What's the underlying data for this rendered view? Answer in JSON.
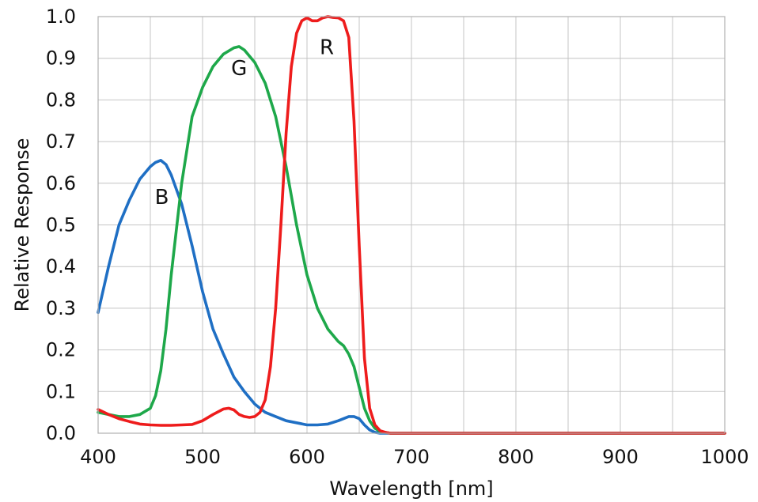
{
  "chart_data": {
    "type": "line",
    "xlabel": "Wavelength [nm]",
    "ylabel": "Relative Response",
    "xlim": [
      400,
      1000
    ],
    "ylim": [
      0,
      1.0
    ],
    "x_ticks": [
      "400",
      "500",
      "600",
      "700",
      "800",
      "900",
      "1000"
    ],
    "y_ticks": [
      "0.0",
      "0.1",
      "0.2",
      "0.3",
      "0.4",
      "0.5",
      "0.6",
      "0.7",
      "0.8",
      "0.9",
      "1.0"
    ],
    "x_grid_step": 50,
    "y_grid_step": 0.1,
    "grid": true,
    "series": [
      {
        "name": "B",
        "color": "#1f6fc4",
        "label_at": [
          461,
          0.55
        ],
        "x": [
          400,
          410,
          420,
          430,
          440,
          450,
          455,
          460,
          465,
          470,
          480,
          490,
          500,
          510,
          520,
          530,
          540,
          550,
          560,
          570,
          580,
          590,
          600,
          610,
          620,
          630,
          640,
          645,
          650,
          655,
          660,
          665,
          670,
          680,
          700,
          1000
        ],
        "y": [
          0.29,
          0.4,
          0.5,
          0.56,
          0.61,
          0.64,
          0.65,
          0.655,
          0.645,
          0.62,
          0.55,
          0.45,
          0.34,
          0.25,
          0.19,
          0.135,
          0.1,
          0.07,
          0.05,
          0.04,
          0.03,
          0.025,
          0.02,
          0.02,
          0.022,
          0.03,
          0.04,
          0.04,
          0.035,
          0.02,
          0.008,
          0.002,
          0.0,
          0.0,
          0.0,
          0.0
        ]
      },
      {
        "name": "G",
        "color": "#1ea84a",
        "label_at": [
          535,
          0.86
        ],
        "x": [
          400,
          410,
          420,
          430,
          440,
          450,
          455,
          460,
          465,
          470,
          480,
          490,
          500,
          510,
          520,
          530,
          535,
          540,
          550,
          560,
          570,
          580,
          590,
          600,
          610,
          620,
          630,
          635,
          640,
          645,
          650,
          655,
          660,
          665,
          670,
          680,
          700,
          1000
        ],
        "y": [
          0.05,
          0.045,
          0.04,
          0.04,
          0.045,
          0.06,
          0.09,
          0.15,
          0.25,
          0.38,
          0.6,
          0.76,
          0.83,
          0.88,
          0.91,
          0.925,
          0.928,
          0.92,
          0.89,
          0.84,
          0.76,
          0.64,
          0.5,
          0.38,
          0.3,
          0.25,
          0.22,
          0.21,
          0.19,
          0.16,
          0.11,
          0.06,
          0.03,
          0.012,
          0.004,
          0.0,
          0.0,
          0.0
        ]
      },
      {
        "name": "R",
        "color": "#ee1c1c",
        "label_at": [
          619,
          0.91
        ],
        "x": [
          400,
          410,
          420,
          430,
          440,
          450,
          460,
          470,
          480,
          490,
          500,
          510,
          520,
          525,
          530,
          535,
          540,
          545,
          550,
          555,
          560,
          565,
          570,
          575,
          580,
          585,
          590,
          595,
          600,
          605,
          610,
          615,
          620,
          625,
          630,
          635,
          640,
          645,
          650,
          655,
          660,
          665,
          670,
          675,
          680,
          700,
          1000
        ],
        "y": [
          0.057,
          0.045,
          0.035,
          0.028,
          0.022,
          0.02,
          0.019,
          0.019,
          0.02,
          0.021,
          0.03,
          0.045,
          0.058,
          0.06,
          0.056,
          0.045,
          0.04,
          0.038,
          0.04,
          0.05,
          0.08,
          0.16,
          0.3,
          0.5,
          0.72,
          0.88,
          0.96,
          0.99,
          0.997,
          0.99,
          0.99,
          0.997,
          1.0,
          0.998,
          0.997,
          0.99,
          0.95,
          0.75,
          0.45,
          0.18,
          0.06,
          0.02,
          0.006,
          0.002,
          0.0,
          0.0,
          0.0
        ]
      }
    ]
  }
}
